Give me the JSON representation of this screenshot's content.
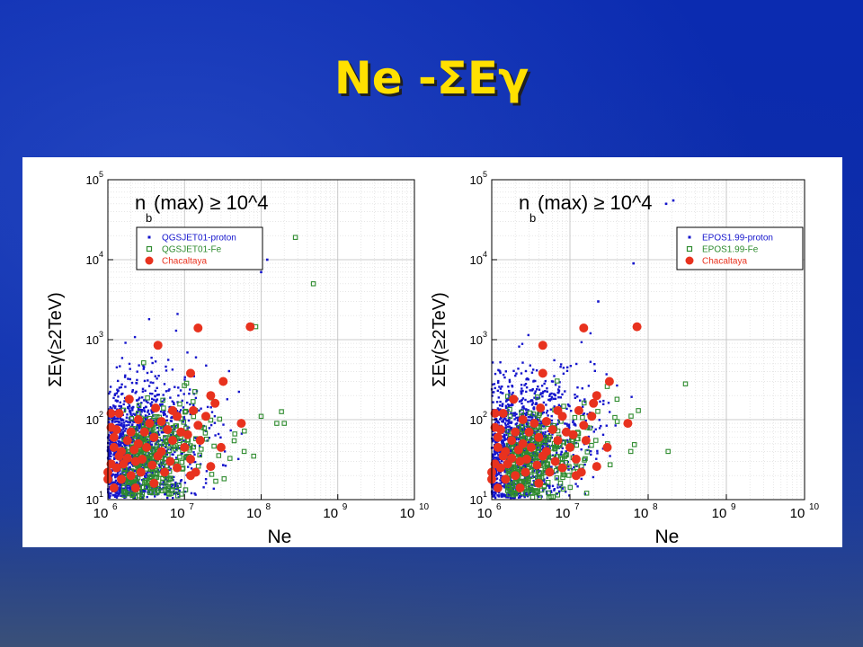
{
  "slide": {
    "title": "Ne -ΣEγ"
  },
  "colors": {
    "proton": "#1515cc",
    "fe": "#2e8b2e",
    "chacaltaya": "#e8321e",
    "title": "#ffe000"
  },
  "chart_data": [
    {
      "type": "scatter",
      "annotation": {
        "main": "n",
        "sub": "b",
        "rest": "(max) ≥ 10^4"
      },
      "xlabel": "Ne",
      "ylabel": "ΣEγ(≥2TeV)",
      "xscale": "log",
      "yscale": "log",
      "xlim": [
        1000000,
        10000000000
      ],
      "ylim": [
        10,
        100000
      ],
      "x_tick_labels": [
        "10",
        "10",
        "10",
        "10",
        "10"
      ],
      "x_tick_exponents": [
        "6",
        "7",
        "8",
        "9",
        "10"
      ],
      "y_tick_labels": [
        "10",
        "10",
        "10",
        "10",
        "10"
      ],
      "y_tick_exponents": [
        "1",
        "2",
        "3",
        "4",
        "5"
      ],
      "grid": true,
      "legend_position": "top-left",
      "series": [
        {
          "name": "QGSJET01-proton",
          "marker": "dot",
          "points": [
            [
              32000000.0,
              27
            ],
            [
              120000000.0,
              10000
            ],
            [
              80000000.0,
              9000
            ],
            [
              100000000.0,
              7000
            ]
          ]
        },
        {
          "name": "QGSJET01-Fe",
          "marker": "square",
          "points": [
            [
              280000000.0,
              19000
            ],
            [
              480000000.0,
              5000
            ],
            [
              75000000.0,
              1500
            ],
            [
              85000000.0,
              1450
            ],
            [
              160000000.0,
              90
            ],
            [
              200000000.0,
              90
            ],
            [
              100000000.0,
              110
            ],
            [
              60000000.0,
              40
            ],
            [
              80000000.0,
              35
            ]
          ]
        },
        {
          "name": "Chacaltaya",
          "marker": "circle",
          "points": [
            [
              4500000.0,
              850
            ],
            [
              15000000.0,
              1400
            ],
            [
              72000000.0,
              1450
            ],
            [
              12000000.0,
              380
            ],
            [
              32000000.0,
              300
            ],
            [
              22000000.0,
              200
            ],
            [
              25000000.0,
              160
            ],
            [
              1900000.0,
              180
            ],
            [
              1400000.0,
              120
            ],
            [
              1100000.0,
              120
            ],
            [
              2500000.0,
              100
            ],
            [
              3500000.0,
              90
            ],
            [
              5000000.0,
              95
            ],
            [
              8000000.0,
              110
            ],
            [
              13000000.0,
              130
            ],
            [
              15000000.0,
              85
            ],
            [
              19000000.0,
              110
            ],
            [
              55000000.0,
              90
            ],
            [
              1100000.0,
              80
            ],
            [
              1300000.0,
              75
            ],
            [
              2000000.0,
              70
            ],
            [
              3000000.0,
              70
            ],
            [
              6000000.0,
              75
            ],
            [
              9000000.0,
              70
            ],
            [
              1200000.0,
              60
            ],
            [
              1800000.0,
              55
            ],
            [
              2500000.0,
              50
            ],
            [
              4000000.0,
              60
            ],
            [
              7000000.0,
              55
            ],
            [
              11000000.0,
              65
            ],
            [
              16000000.0,
              55
            ],
            [
              1200000.0,
              45
            ],
            [
              1500000.0,
              40
            ],
            [
              2200000.0,
              42
            ],
            [
              3200000.0,
              45
            ],
            [
              5000000.0,
              40
            ],
            [
              10000000.0,
              45
            ],
            [
              30000000.0,
              45
            ],
            [
              1400000.0,
              35
            ],
            [
              1800000.0,
              33
            ],
            [
              2800000.0,
              32
            ],
            [
              4500000.0,
              35
            ],
            [
              6500000.0,
              30
            ],
            [
              12000000.0,
              32
            ],
            [
              1100000.0,
              28
            ],
            [
              1600000.0,
              28
            ],
            [
              2300000.0,
              30
            ],
            [
              3800000.0,
              27
            ],
            [
              1000000.0,
              22
            ],
            [
              1300000.0,
              25
            ],
            [
              2700000.0,
              22
            ],
            [
              5500000.0,
              22
            ],
            [
              8000000.0,
              25
            ],
            [
              14000000.0,
              22
            ],
            [
              22000000.0,
              26
            ],
            [
              1000000.0,
              18
            ],
            [
              1500000.0,
              18
            ],
            [
              2000000.0,
              20
            ],
            [
              4000000.0,
              16
            ],
            [
              12000000.0,
              20
            ],
            [
              1200000.0,
              14
            ],
            [
              2300000.0,
              14
            ],
            [
              4200000.0,
              140
            ],
            [
              7000000.0,
              130
            ]
          ]
        }
      ]
    },
    {
      "type": "scatter",
      "annotation": {
        "main": "n",
        "sub": "b",
        "rest": "(max) ≥ 10^4"
      },
      "xlabel": "Ne",
      "ylabel": "ΣEγ(≥2TeV)",
      "xscale": "log",
      "yscale": "log",
      "xlim": [
        1000000,
        10000000000
      ],
      "ylim": [
        10,
        100000
      ],
      "x_tick_labels": [
        "10",
        "10",
        "10",
        "10",
        "10"
      ],
      "x_tick_exponents": [
        "6",
        "7",
        "8",
        "9",
        "10"
      ],
      "y_tick_labels": [
        "10",
        "10",
        "10",
        "10",
        "10"
      ],
      "y_tick_exponents": [
        "1",
        "2",
        "3",
        "4",
        "5"
      ],
      "grid": true,
      "legend_position": "top-right",
      "series": [
        {
          "name": "EPOS1.99-proton",
          "marker": "dot",
          "points": [
            [
              170000000.0,
              50000
            ],
            [
              210000000.0,
              55000
            ],
            [
              65000000.0,
              9000
            ],
            [
              23000000.0,
              3000
            ]
          ]
        },
        {
          "name": "EPOS1.99-Fe",
          "marker": "square",
          "points": [
            [
              300000000.0,
              280
            ],
            [
              180000000.0,
              40
            ],
            [
              60000000.0,
              40
            ],
            [
              55000000.0,
              90
            ],
            [
              75000000.0,
              130
            ],
            [
              40000000.0,
              180
            ],
            [
              30000000.0,
              260
            ]
          ]
        },
        {
          "name": "Chacaltaya",
          "marker": "circle",
          "points": [
            [
              4500000.0,
              850
            ],
            [
              15000000.0,
              1400
            ],
            [
              72000000.0,
              1450
            ],
            [
              4500000.0,
              380
            ],
            [
              32000000.0,
              300
            ],
            [
              22000000.0,
              200
            ],
            [
              20000000.0,
              160
            ],
            [
              1900000.0,
              180
            ],
            [
              1400000.0,
              120
            ],
            [
              1100000.0,
              120
            ],
            [
              2500000.0,
              100
            ],
            [
              3500000.0,
              90
            ],
            [
              5000000.0,
              95
            ],
            [
              8000000.0,
              110
            ],
            [
              13000000.0,
              130
            ],
            [
              15000000.0,
              85
            ],
            [
              19000000.0,
              110
            ],
            [
              55000000.0,
              90
            ],
            [
              1100000.0,
              80
            ],
            [
              1300000.0,
              75
            ],
            [
              2000000.0,
              70
            ],
            [
              3000000.0,
              70
            ],
            [
              6000000.0,
              75
            ],
            [
              9000000.0,
              70
            ],
            [
              1200000.0,
              60
            ],
            [
              1800000.0,
              55
            ],
            [
              2500000.0,
              50
            ],
            [
              4000000.0,
              60
            ],
            [
              7000000.0,
              55
            ],
            [
              11000000.0,
              65
            ],
            [
              16000000.0,
              55
            ],
            [
              1200000.0,
              45
            ],
            [
              1500000.0,
              40
            ],
            [
              2200000.0,
              42
            ],
            [
              3200000.0,
              45
            ],
            [
              5000000.0,
              40
            ],
            [
              10000000.0,
              45
            ],
            [
              30000000.0,
              45
            ],
            [
              1400000.0,
              35
            ],
            [
              1800000.0,
              33
            ],
            [
              2800000.0,
              32
            ],
            [
              4500000.0,
              35
            ],
            [
              6500000.0,
              30
            ],
            [
              12000000.0,
              32
            ],
            [
              1100000.0,
              28
            ],
            [
              1600000.0,
              28
            ],
            [
              2300000.0,
              30
            ],
            [
              3800000.0,
              27
            ],
            [
              1000000.0,
              22
            ],
            [
              1300000.0,
              25
            ],
            [
              2700000.0,
              22
            ],
            [
              5500000.0,
              22
            ],
            [
              8000000.0,
              25
            ],
            [
              14000000.0,
              22
            ],
            [
              22000000.0,
              26
            ],
            [
              1000000.0,
              18
            ],
            [
              1500000.0,
              18
            ],
            [
              2000000.0,
              20
            ],
            [
              4000000.0,
              16
            ],
            [
              12000000.0,
              20
            ],
            [
              1200000.0,
              14
            ],
            [
              2300000.0,
              14
            ],
            [
              4200000.0,
              140
            ],
            [
              7000000.0,
              130
            ]
          ]
        }
      ]
    }
  ]
}
